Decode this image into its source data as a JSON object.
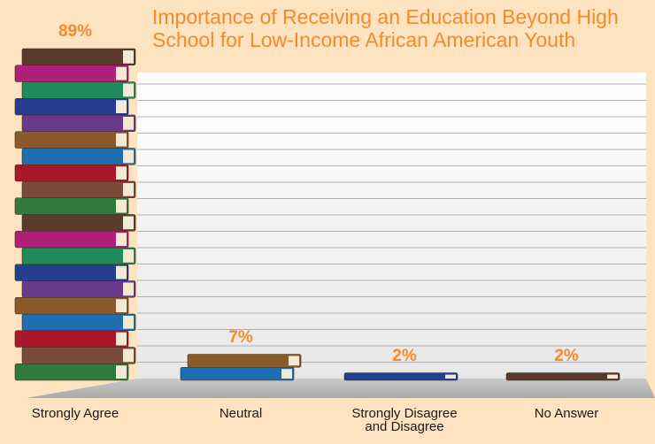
{
  "chart_data": {
    "type": "bar",
    "title": "Importance of Receiving an Education Beyond High School for Low-Income African American Youth",
    "categories": [
      "Strongly Agree",
      "Neutral",
      "Strongly Disagree and Disagree",
      "No Answer"
    ],
    "values": [
      89,
      7,
      2,
      2
    ],
    "value_labels": [
      "89%",
      "7%",
      "2%",
      "2%"
    ],
    "color": "#f58a2a"
  }
}
